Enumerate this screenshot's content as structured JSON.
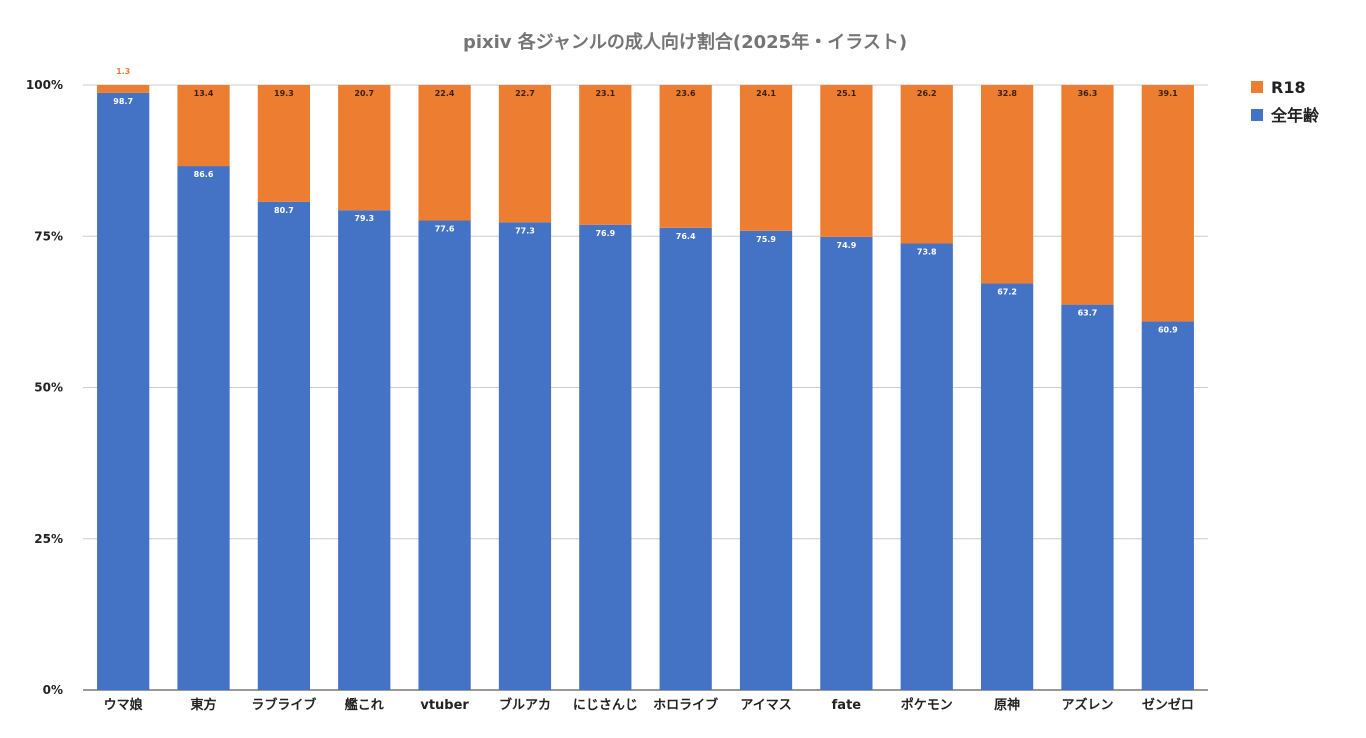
{
  "chart_data": {
    "type": "bar",
    "stacked": true,
    "title": "pixiv 各ジャンルの成人向け割合(2025年・イラスト)",
    "xlabel": "",
    "ylabel": "",
    "ylim": [
      0,
      100
    ],
    "yticks": [
      0,
      25,
      50,
      75,
      100
    ],
    "ytick_labels": [
      "0%",
      "25%",
      "50%",
      "75%",
      "100%"
    ],
    "grid": true,
    "legend_position": "top-right",
    "categories": [
      "ウマ娘",
      "東方",
      "ラブライブ",
      "艦これ",
      "vtuber",
      "ブルアカ",
      "にじさんじ",
      "ホロライブ",
      "アイマス",
      "fate",
      "ポケモン",
      "原神",
      "アズレン",
      "ゼンゼロ"
    ],
    "series": [
      {
        "name": "全年齢",
        "color": "#4472C4",
        "label_color": "#ffffff",
        "values": [
          98.7,
          86.6,
          80.7,
          79.3,
          77.6,
          77.3,
          76.9,
          76.4,
          75.9,
          74.9,
          73.8,
          67.2,
          63.7,
          60.9
        ],
        "labels": [
          "98.7",
          "86.6",
          "80.7",
          "79.3",
          "77.6",
          "77.3",
          "76.9",
          "76.4",
          "75.9",
          "74.9",
          "73.8",
          "67.2",
          "63.7",
          "60.9"
        ]
      },
      {
        "name": "R18",
        "color": "#ED7D31",
        "label_color": "#3a1f0a",
        "outside_label_color": "#ED7D31",
        "values": [
          1.3,
          13.4,
          19.3,
          20.7,
          22.4,
          22.7,
          23.1,
          23.6,
          24.1,
          25.1,
          26.2,
          32.8,
          36.3,
          39.1
        ],
        "labels": [
          "1.3",
          "13.4",
          "19.3",
          "20.7",
          "22.4",
          "22.7",
          "23.1",
          "23.6",
          "24.1",
          "25.1",
          "26.2",
          "32.8",
          "36.3",
          "39.1"
        ]
      }
    ],
    "legend": [
      {
        "name": "R18",
        "color": "#ED7D31"
      },
      {
        "name": "全年齢",
        "color": "#4472C4"
      }
    ]
  }
}
